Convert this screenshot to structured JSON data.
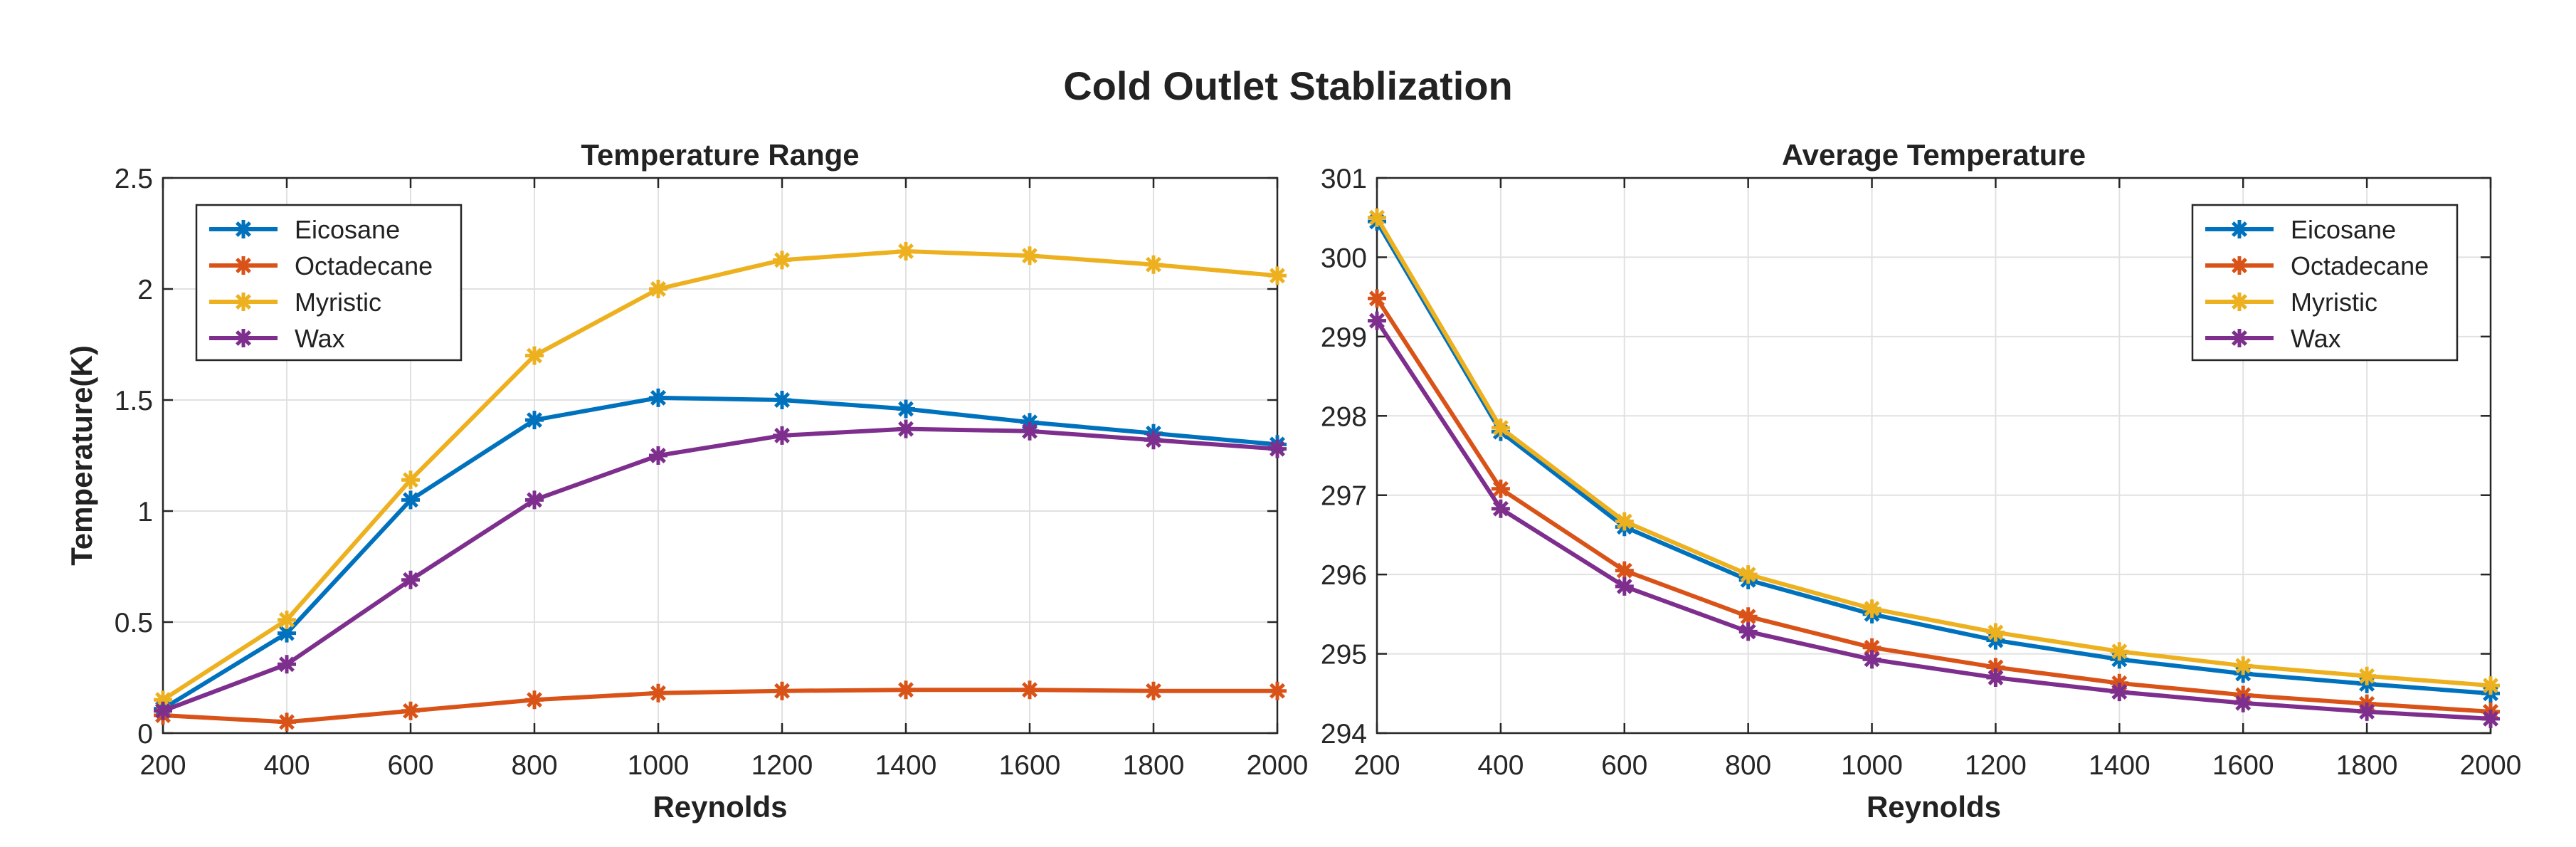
{
  "figure_title": "Cold Outlet Stablization",
  "chart_data": [
    {
      "type": "line",
      "title": "Temperature Range",
      "xlabel": "Reynolds",
      "ylabel": "Temperature(K)",
      "xlim": [
        200,
        2000
      ],
      "ylim": [
        0,
        2.5
      ],
      "xticks": [
        200,
        400,
        600,
        800,
        1000,
        1200,
        1400,
        1600,
        1800,
        2000
      ],
      "xtick_labels": [
        "200",
        "400",
        "600",
        "800",
        "1000",
        "1200",
        "1400",
        "1600",
        "1800",
        "2000"
      ],
      "yticks": [
        0,
        0.5,
        1,
        1.5,
        2,
        2.5
      ],
      "ytick_labels": [
        "0",
        "0.5",
        "1",
        "1.5",
        "2",
        "2.5"
      ],
      "grid": true,
      "legend_position": "top-left",
      "x": [
        200,
        400,
        600,
        800,
        1000,
        1200,
        1400,
        1600,
        1800,
        2000
      ],
      "series": [
        {
          "name": "Eicosane",
          "color": "#0072BD",
          "values": [
            0.11,
            0.45,
            1.05,
            1.41,
            1.51,
            1.5,
            1.46,
            1.4,
            1.35,
            1.3
          ]
        },
        {
          "name": "Octadecane",
          "color": "#D95319",
          "values": [
            0.08,
            0.05,
            0.1,
            0.15,
            0.18,
            0.19,
            0.195,
            0.195,
            0.19,
            0.19
          ]
        },
        {
          "name": "Myristic",
          "color": "#EDB120",
          "values": [
            0.15,
            0.51,
            1.14,
            1.7,
            2.0,
            2.13,
            2.17,
            2.15,
            2.11,
            2.06
          ]
        },
        {
          "name": "Wax",
          "color": "#7E2F8E",
          "values": [
            0.1,
            0.31,
            0.69,
            1.05,
            1.25,
            1.34,
            1.37,
            1.36,
            1.32,
            1.28
          ]
        }
      ]
    },
    {
      "type": "line",
      "title": "Average Temperature",
      "xlabel": "Reynolds",
      "ylabel": "",
      "xlim": [
        200,
        2000
      ],
      "ylim": [
        294,
        301
      ],
      "xticks": [
        200,
        400,
        600,
        800,
        1000,
        1200,
        1400,
        1600,
        1800,
        2000
      ],
      "xtick_labels": [
        "200",
        "400",
        "600",
        "800",
        "1000",
        "1200",
        "1400",
        "1600",
        "1800",
        "2000"
      ],
      "yticks": [
        294,
        295,
        296,
        297,
        298,
        299,
        300,
        301
      ],
      "ytick_labels": [
        "294",
        "295",
        "296",
        "297",
        "298",
        "299",
        "300",
        "301"
      ],
      "grid": true,
      "legend_position": "top-right",
      "x": [
        200,
        400,
        600,
        800,
        1000,
        1200,
        1400,
        1600,
        1800,
        2000
      ],
      "series": [
        {
          "name": "Eicosane",
          "color": "#0072BD",
          "values": [
            300.45,
            297.8,
            296.6,
            295.93,
            295.5,
            295.17,
            294.93,
            294.75,
            294.62,
            294.5
          ]
        },
        {
          "name": "Octadecane",
          "color": "#D95319",
          "values": [
            299.48,
            297.08,
            296.05,
            295.47,
            295.08,
            294.83,
            294.63,
            294.48,
            294.37,
            294.27
          ]
        },
        {
          "name": "Myristic",
          "color": "#EDB120",
          "values": [
            300.5,
            297.85,
            296.67,
            296.0,
            295.57,
            295.27,
            295.03,
            294.85,
            294.72,
            294.6
          ]
        },
        {
          "name": "Wax",
          "color": "#7E2F8E",
          "values": [
            299.2,
            296.83,
            295.85,
            295.28,
            294.93,
            294.7,
            294.52,
            294.38,
            294.27,
            294.18
          ]
        }
      ]
    }
  ]
}
